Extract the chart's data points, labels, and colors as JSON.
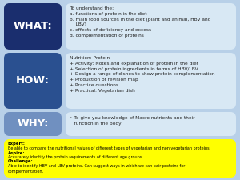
{
  "background_color": "#b8d0e8",
  "what_box_color": "#1a2e6e",
  "how_box_color": "#2a5090",
  "why_box_color": "#7090c0",
  "content_box_color": "#d8e8f4",
  "yellow_box_color": "#ffff00",
  "what_label": "WHAT:",
  "how_label": "HOW:",
  "why_label": "WHY:",
  "what_text": "To understand the:\na. functions of protein in the diet\nb. main food sources in the diet (plant and animal, HBV and\n    LBV)\nc. effects of deficiency and excess\nd. complementation of proteins",
  "how_text": "Nutrition: Protein\n+ Activity: Notes and explanation of protein in the diet\n+ Selection of protein ingredients in terms of HBV/LBV\n+ Design a range of dishes to show protein complementation\n+ Production of revision map\n+ Practice questions\n+ Practical: Vegetarian dish",
  "why_text": "• To give you knowledge of Macro nutrients and their\n   function in the body",
  "expert_bold": "Expert:",
  "expert_text": "Be able to compare the nutritional values of different types of vegetarian and non vegetarian proteins",
  "aspire_bold": "Aspire:",
  "aspire_text": "Accurately identify the protein requirements of different age groups",
  "challenge_bold": "Challenge:",
  "challenge_text": "Able to identify HBV and LBV proteins. Can suggest ways in which we can pair proteins for\ncomplementation."
}
